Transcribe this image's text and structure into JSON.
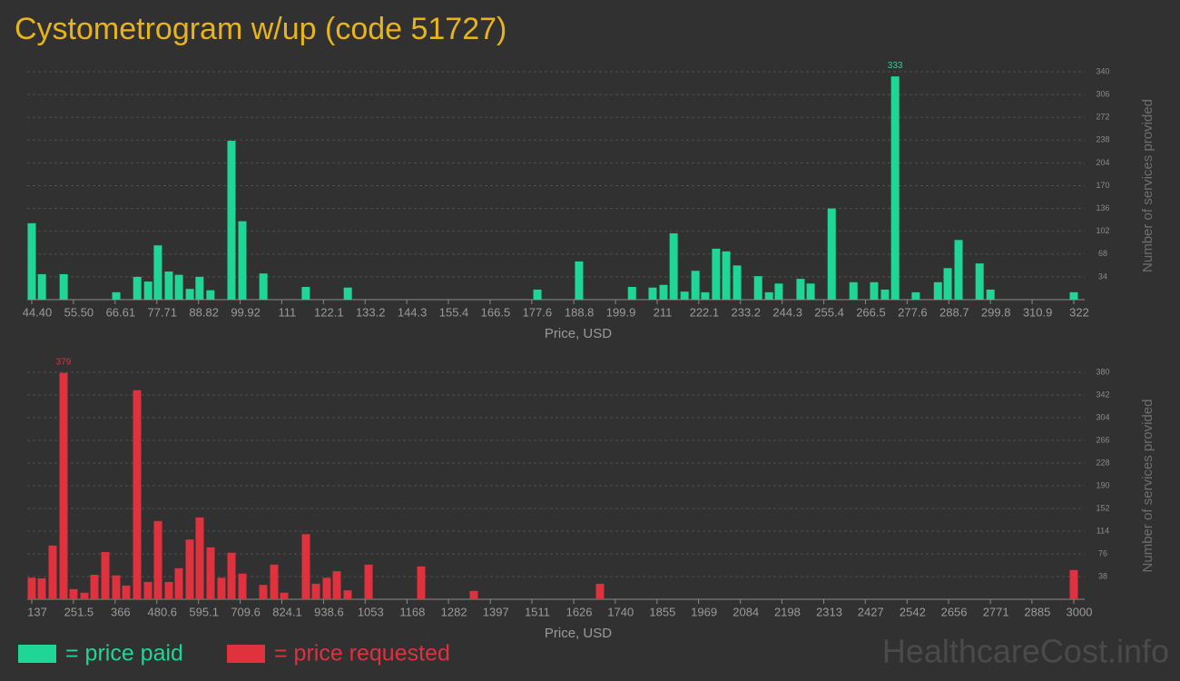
{
  "title": "Cystometrogram w/up (code 51727)",
  "watermark": "HealthcareCost.info",
  "chart_data": [
    {
      "type": "bar",
      "name": "= price paid",
      "color": "#20d696",
      "xlabel": "Price, USD",
      "ylabel": "Number of services provided",
      "x": [
        44.4,
        47.1,
        52.9,
        66.9,
        72.5,
        75.4,
        78.0,
        80.9,
        83.6,
        86.5,
        89.1,
        92.0,
        97.6,
        100.5,
        106.1,
        117.4,
        128.6,
        179.1,
        190.2,
        204.3,
        209.8,
        212.7,
        215.4,
        218.3,
        221.2,
        223.8,
        226.7,
        229.4,
        232.3,
        237.9,
        240.8,
        243.4,
        249.2,
        251.9,
        257.5,
        263.3,
        268.8,
        271.7,
        274.4,
        279.9,
        285.8,
        288.4,
        291.3,
        296.9,
        299.8,
        322.0
      ],
      "values": [
        114,
        38,
        38,
        11,
        34,
        27,
        81,
        42,
        37,
        16,
        34,
        14,
        237,
        117,
        39,
        19,
        18,
        15,
        57,
        19,
        18,
        22,
        99,
        12,
        43,
        11,
        76,
        72,
        51,
        35,
        11,
        24,
        31,
        24,
        136,
        26,
        26,
        15,
        333,
        11,
        26,
        47,
        89,
        54,
        15,
        11
      ],
      "xlim": [
        44.4,
        322
      ],
      "xticks": [
        {
          "value": 44.4,
          "label": "44.40"
        },
        {
          "value": 55.5,
          "label": "55.50"
        },
        66.61,
        77.71,
        88.82,
        99.92,
        111,
        122.1,
        133.2,
        144.3,
        155.4,
        166.5,
        177.6,
        188.8,
        199.9,
        211,
        222.1,
        233.2,
        244.3,
        255.4,
        266.5,
        277.6,
        288.7,
        299.8,
        310.9,
        322
      ],
      "ylim": [
        0,
        340
      ],
      "yticks": [
        34,
        68,
        102,
        136,
        170,
        204,
        238,
        272,
        306,
        340
      ],
      "grid": true
    },
    {
      "type": "bar",
      "name": "= price requested",
      "color": "#e0313f",
      "xlabel": "Price, USD",
      "ylabel": "Number of services provided",
      "x": [
        137,
        164.4,
        194.4,
        224.3,
        251.7,
        281.7,
        309.1,
        339.0,
        368.9,
        396.4,
        426.3,
        456.2,
        483.7,
        513.6,
        541.0,
        571.0,
        598.4,
        628.3,
        658.2,
        685.7,
        715.6,
        773.0,
        802.9,
        830.3,
        890.2,
        917.6,
        947.6,
        975.0,
        1004.9,
        1062.3,
        1206.9,
        1351.6,
        1698.2,
        3000
      ],
      "values": [
        36,
        35,
        90,
        379,
        17,
        11,
        41,
        79,
        40,
        23,
        350,
        29,
        131,
        29,
        52,
        100,
        137,
        87,
        36,
        78,
        43,
        24,
        58,
        11,
        109,
        26,
        36,
        47,
        15,
        58,
        55,
        14,
        26,
        49
      ],
      "xlim": [
        137,
        3000
      ],
      "xticks": [
        137,
        251.5,
        366,
        480.6,
        595.1,
        709.6,
        824.1,
        938.6,
        1053,
        1168,
        1282,
        1397,
        1511,
        1626,
        1740,
        1855,
        1969,
        2084,
        2198,
        2313,
        2427,
        2542,
        2656,
        2771,
        2885,
        3000
      ],
      "ylim": [
        0,
        380
      ],
      "yticks": [
        38,
        76,
        114,
        152,
        190,
        228,
        266,
        304,
        342,
        380
      ],
      "grid": true
    }
  ]
}
